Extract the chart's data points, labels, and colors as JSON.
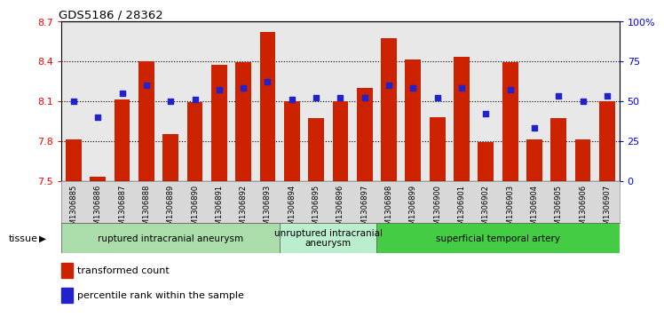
{
  "title": "GDS5186 / 28362",
  "samples": [
    "GSM1306885",
    "GSM1306886",
    "GSM1306887",
    "GSM1306888",
    "GSM1306889",
    "GSM1306890",
    "GSM1306891",
    "GSM1306892",
    "GSM1306893",
    "GSM1306894",
    "GSM1306895",
    "GSM1306896",
    "GSM1306897",
    "GSM1306898",
    "GSM1306899",
    "GSM1306900",
    "GSM1306901",
    "GSM1306902",
    "GSM1306903",
    "GSM1306904",
    "GSM1306905",
    "GSM1306906",
    "GSM1306907"
  ],
  "transformed_count": [
    7.81,
    7.53,
    8.11,
    8.4,
    7.85,
    8.09,
    8.37,
    8.39,
    8.62,
    8.1,
    7.97,
    8.1,
    8.2,
    8.57,
    8.41,
    7.98,
    8.43,
    7.79,
    8.39,
    7.81,
    7.97,
    7.81,
    8.1
  ],
  "percentile_rank": [
    50,
    40,
    55,
    60,
    50,
    51,
    57,
    58,
    62,
    51,
    52,
    52,
    52,
    60,
    58,
    52,
    58,
    42,
    57,
    33,
    53,
    50,
    53
  ],
  "ylim_left": [
    7.5,
    8.7
  ],
  "ylim_right": [
    0,
    100
  ],
  "bar_color": "#cc2200",
  "dot_color": "#2222cc",
  "yticks_left": [
    7.5,
    7.8,
    8.1,
    8.4,
    8.7
  ],
  "yticks_right": [
    0,
    25,
    50,
    75,
    100
  ],
  "plot_bg": "#e8e8e8",
  "xtick_bg": "#d8d8d8",
  "group_definitions": [
    {
      "label": "ruptured intracranial aneurysm",
      "start": 0,
      "end": 8,
      "color": "#aaddaa"
    },
    {
      "label": "unruptured intracranial\naneurysm",
      "start": 9,
      "end": 12,
      "color": "#bbeecc"
    },
    {
      "label": "superficial temporal artery",
      "start": 13,
      "end": 22,
      "color": "#44cc44"
    }
  ],
  "tissue_label": "tissue",
  "legend_items": [
    {
      "color": "#cc2200",
      "label": "transformed count"
    },
    {
      "color": "#2222cc",
      "label": "percentile rank within the sample"
    }
  ]
}
